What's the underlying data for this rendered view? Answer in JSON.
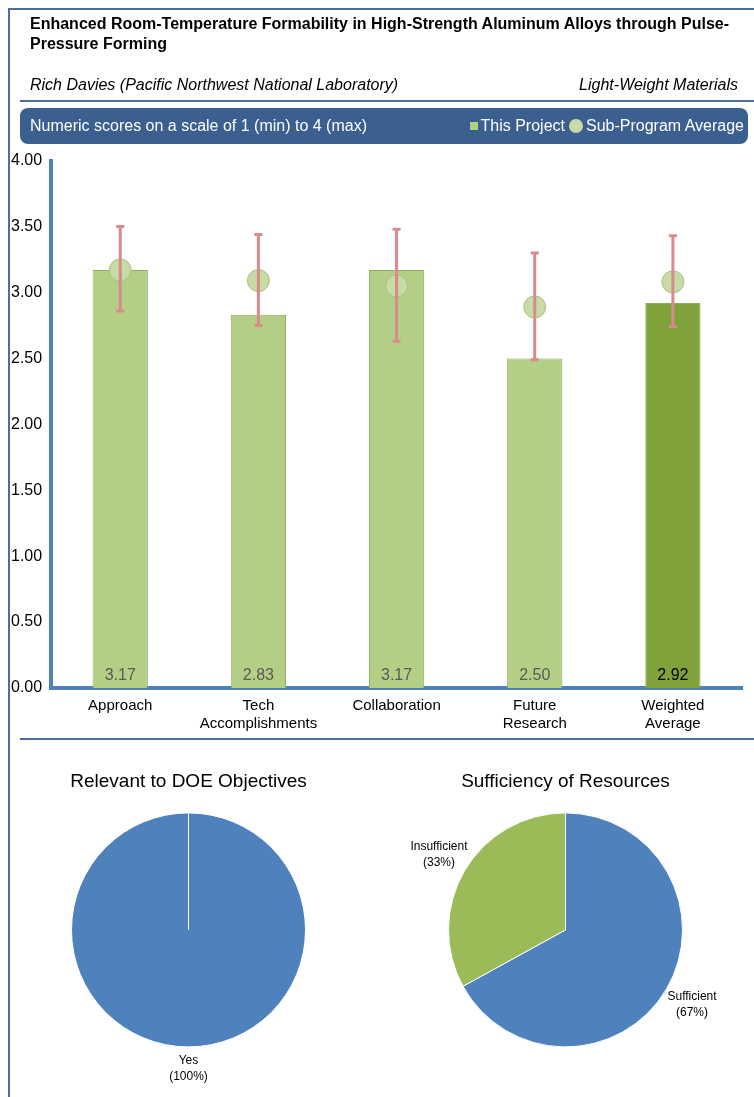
{
  "chart_data": [
    {
      "type": "bar",
      "title": "Enhanced Room-Temperature Formability in High-Strength Aluminum Alloys through Pulse-Pressure Forming",
      "subtitle": "Rich Davies (Pacific Northwest National Laboratory)",
      "annotations": [
        "Light-Weight Materials",
        "Numeric scores on a scale of 1 (min) to 4 (max)"
      ],
      "categories": [
        "Approach",
        "Tech Accomplishments",
        "Collaboration",
        "Future Research",
        "Weighted Average"
      ],
      "ylim": [
        0,
        4
      ],
      "yticks": [
        {
          "value": 0,
          "label": "0.00"
        },
        {
          "value": 0.5,
          "label": "0.50"
        },
        {
          "value": 1,
          "label": "1.00"
        },
        {
          "value": 1.5,
          "label": "1.50"
        },
        {
          "value": 2,
          "label": "2.00"
        },
        {
          "value": 2.5,
          "label": "2.50"
        },
        {
          "value": 3,
          "label": "3.00"
        },
        {
          "value": 3.5,
          "label": "3.50"
        },
        {
          "value": 4,
          "label": "4.00"
        }
      ],
      "legend": "top right",
      "series": [
        {
          "name": "This Project",
          "type": "bar",
          "color": "#b3cf85",
          "colors": [
            "#b3cf85",
            "#b3cf85",
            "#b3cf85",
            "#b3cf85",
            "#7fa33a"
          ],
          "values": [
            3.17,
            2.83,
            3.17,
            2.5,
            2.92
          ],
          "value_labels": [
            "3.17",
            "2.83",
            "3.17",
            "2.50",
            "2.92"
          ]
        },
        {
          "name": "Sub-Program Average",
          "type": "scatter",
          "marker": "circle",
          "color": "#c6dba6",
          "x": [
            "Approach",
            "Tech Accomplishments",
            "Collaboration",
            "Future Research",
            "Weighted Average"
          ],
          "values": [
            3.17,
            3.09,
            3.05,
            2.89,
            3.08
          ],
          "errors": [
            [
              2.86,
              3.5
            ],
            [
              2.75,
              3.44
            ],
            [
              2.63,
              3.48
            ],
            [
              2.49,
              3.3
            ],
            [
              2.74,
              3.43
            ]
          ]
        }
      ]
    },
    {
      "type": "pie",
      "title": "Relevant to DOE Objectives",
      "categories": [
        "Yes"
      ],
      "values": [
        100
      ],
      "colors": [
        "#4f81bd"
      ],
      "value_labels": [
        "(100%)"
      ]
    },
    {
      "type": "pie",
      "title": "Sufficiency of Resources",
      "categories": [
        "Sufficient",
        "Insufficient"
      ],
      "values": [
        67,
        33
      ],
      "colors": [
        "#4f81bd",
        "#9bbb59"
      ],
      "value_labels": [
        "(67%)",
        "(33%)"
      ]
    }
  ]
}
